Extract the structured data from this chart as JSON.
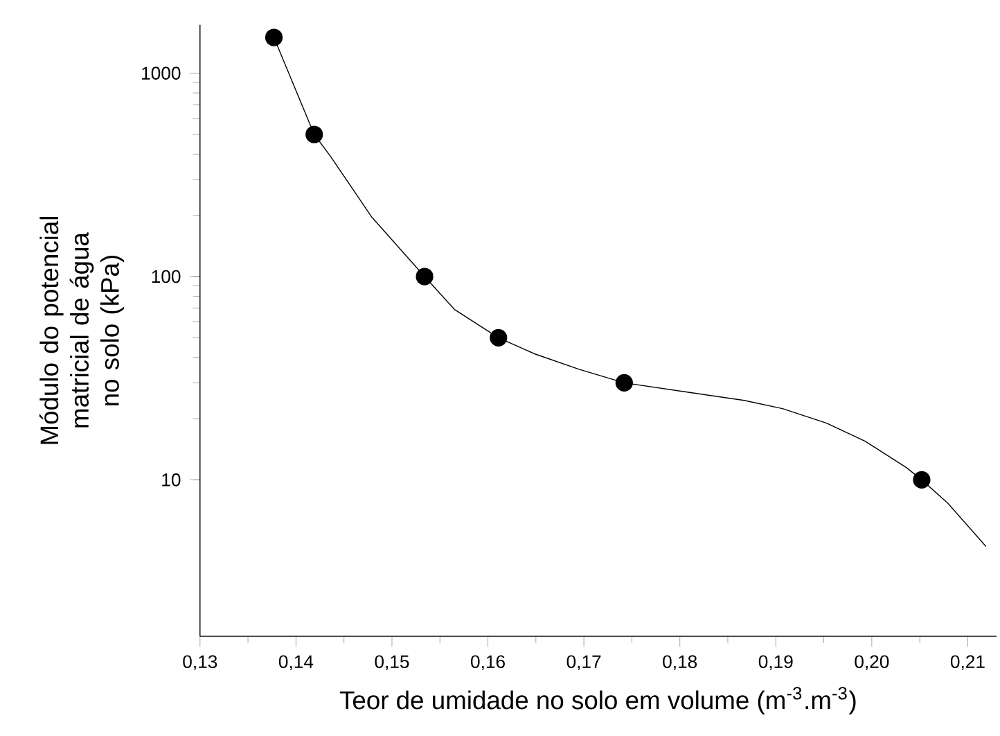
{
  "chart_data": {
    "type": "scatter",
    "xlabel": "Teor de umidade no solo em volume (m$^{-3}$.m$^{-3}$)",
    "ylabel": "Módulo do potencial matricial de água no solo (kPa)",
    "log": "y",
    "grid": false,
    "xlim": [
      0.13,
      0.213
    ],
    "ylim": [
      1.7,
      1730
    ],
    "xticks": [
      {
        "value": 0.13,
        "label": "0,13"
      },
      {
        "value": 0.14,
        "label": "0,14"
      },
      {
        "value": 0.15,
        "label": "0,15"
      },
      {
        "value": 0.16,
        "label": "0,16"
      },
      {
        "value": 0.17,
        "label": "0,17"
      },
      {
        "value": 0.18,
        "label": "0,18"
      },
      {
        "value": 0.19,
        "label": "0,19"
      },
      {
        "value": 0.2,
        "label": "0,20"
      },
      {
        "value": 0.21,
        "label": "0,21"
      }
    ],
    "yticks": [
      10,
      100,
      1000
    ],
    "series": [
      {
        "marker": "circle",
        "color": "#000000",
        "x": [
          0.1377,
          0.1419,
          0.1534,
          0.1611,
          0.1742,
          0.2052
        ],
        "values": [
          1500,
          500,
          100,
          50,
          30,
          10
        ]
      },
      {
        "type": "line",
        "marker": "none",
        "color": "#000000",
        "x": [
          0.1377,
          0.1419,
          0.1436,
          0.1479,
          0.1534,
          0.1565,
          0.1611,
          0.1649,
          0.1695,
          0.1742,
          0.181,
          0.1867,
          0.1907,
          0.1953,
          0.1993,
          0.2036,
          0.2052,
          0.2079,
          0.2119
        ],
        "values": [
          1500,
          500,
          390,
          196,
          100,
          69,
          50,
          41.6,
          35,
          30,
          26.9,
          24.6,
          22.4,
          19,
          15.5,
          11.5,
          10,
          7.7,
          4.7
        ]
      }
    ]
  }
}
